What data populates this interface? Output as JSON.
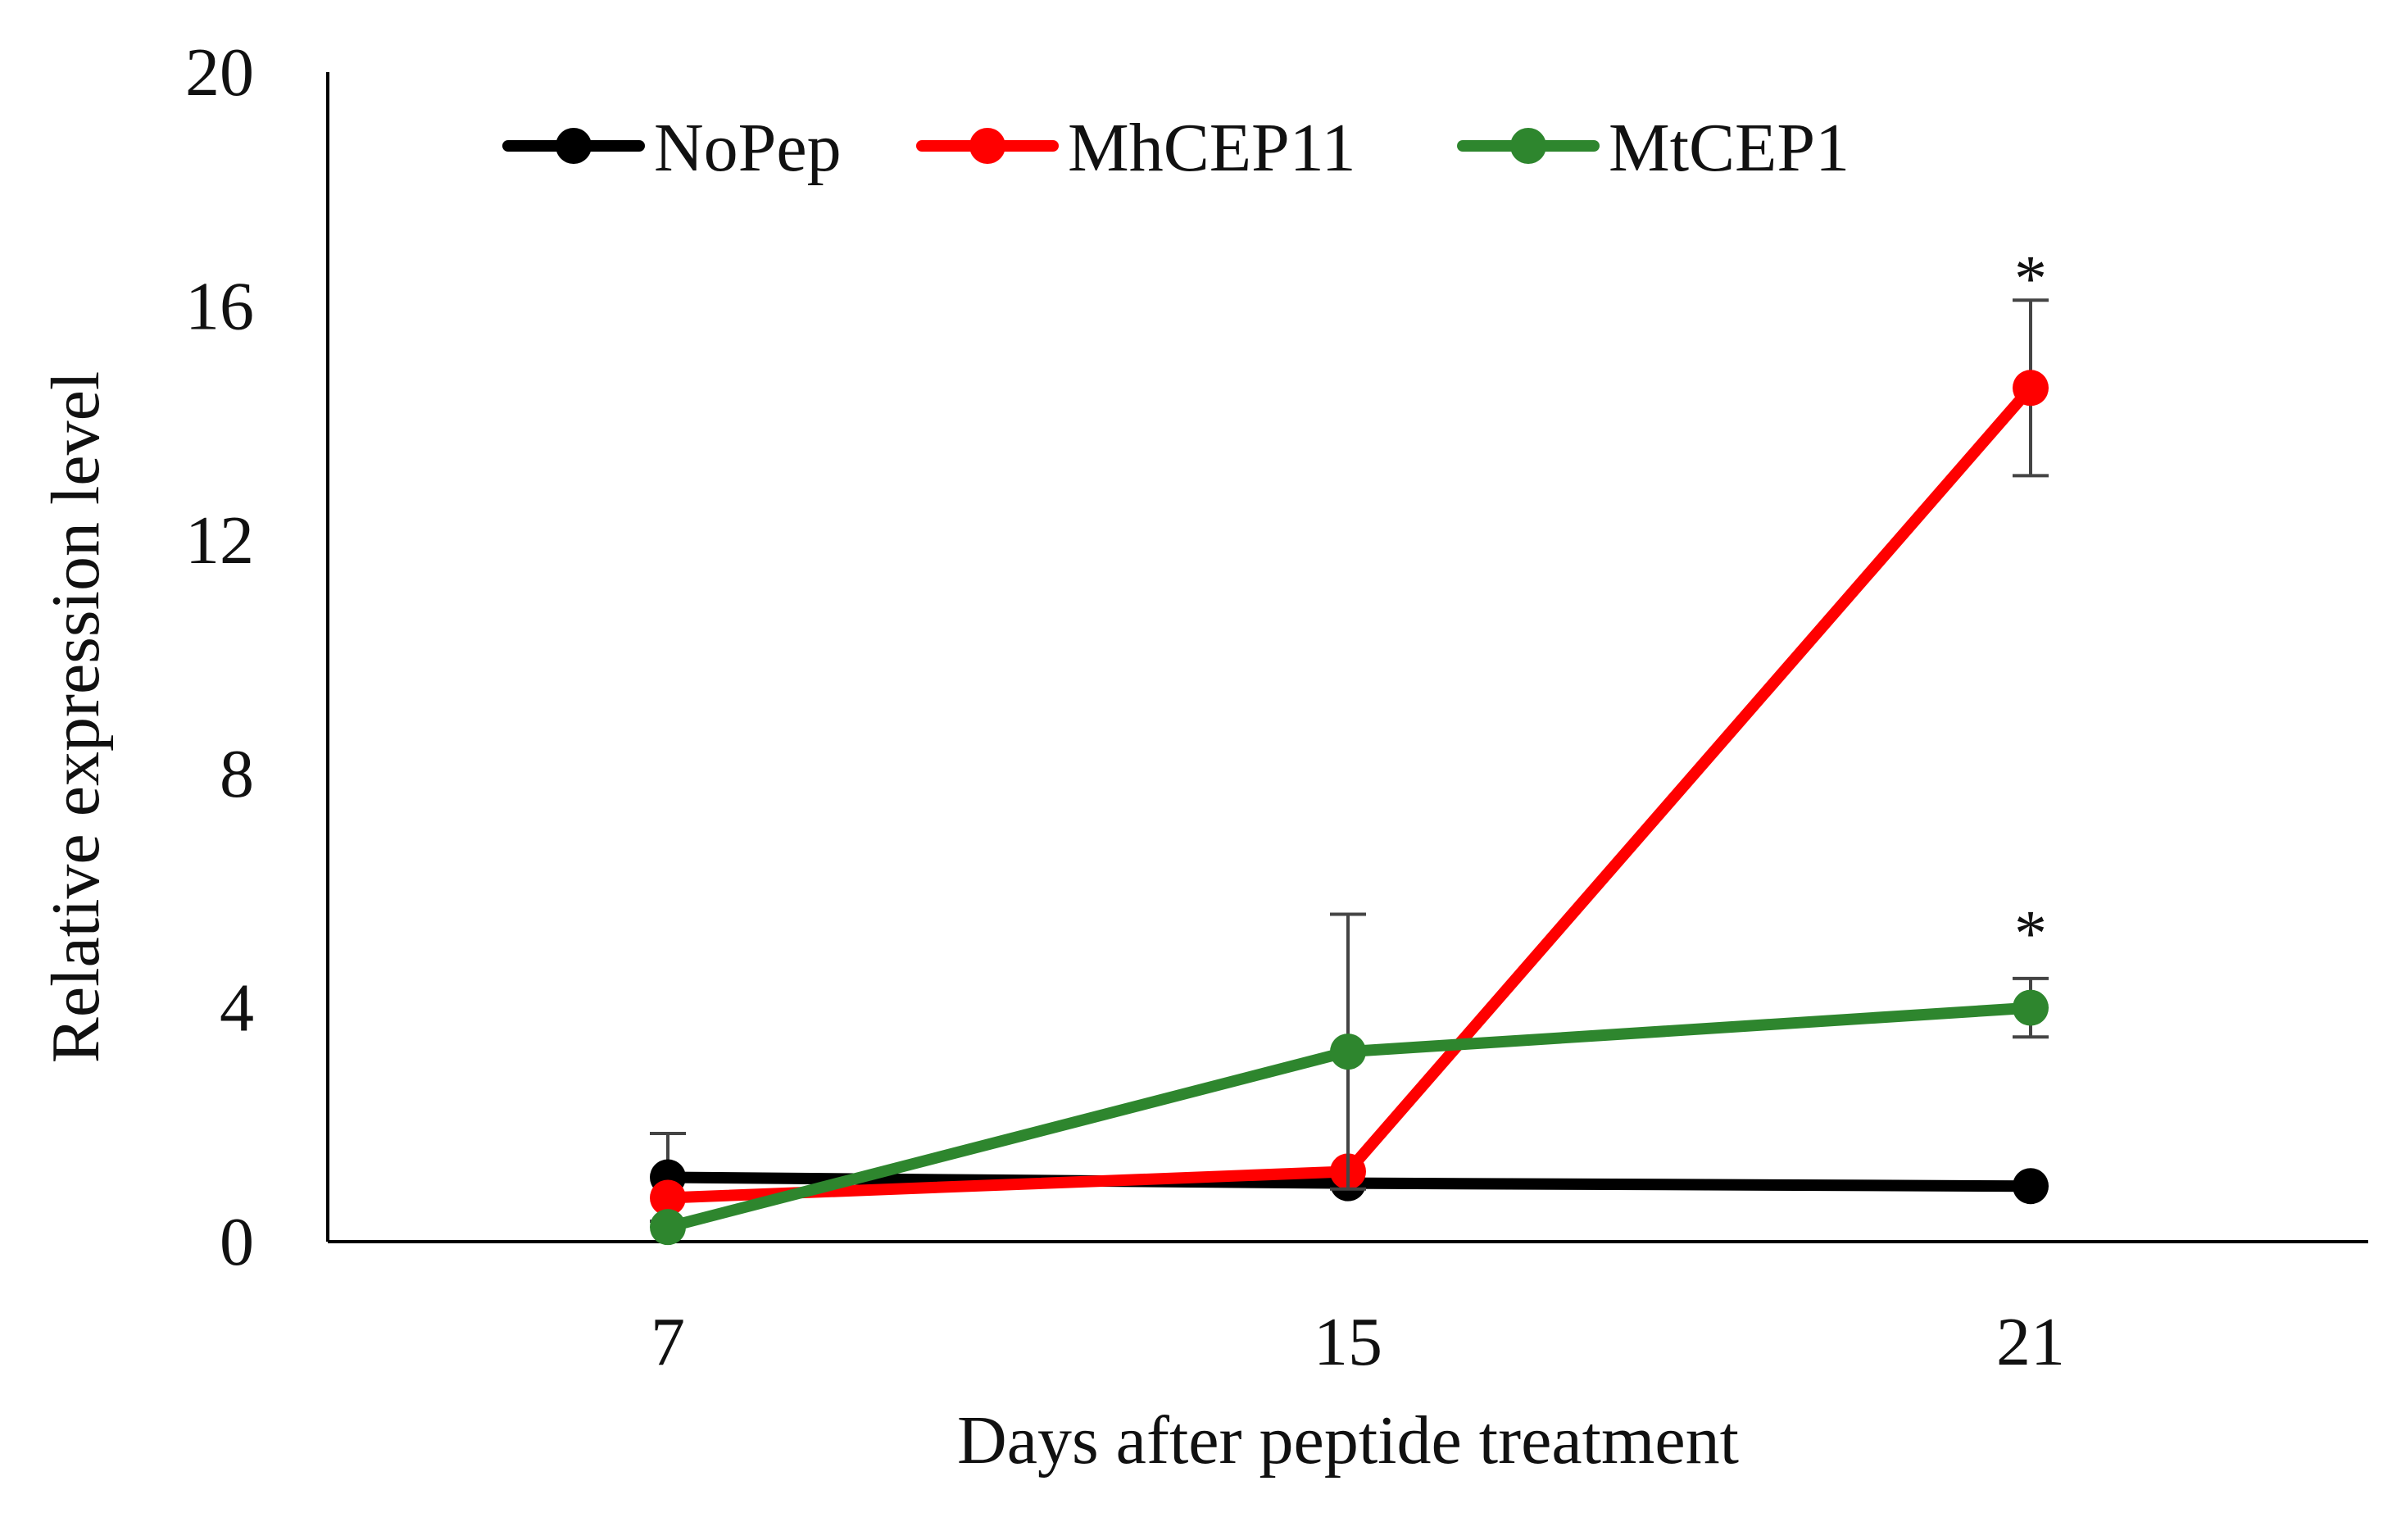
{
  "chart_data": {
    "type": "line",
    "title": "",
    "xlabel": "Days after peptide treatment",
    "ylabel": "Relative  expression level",
    "x": [
      7,
      15,
      21
    ],
    "x_tick_labels": [
      "7",
      "15",
      "21"
    ],
    "y_ticks": [
      0,
      4,
      8,
      12,
      16,
      20
    ],
    "y_tick_labels": [
      "0",
      "4",
      "8",
      "12",
      "16",
      "20"
    ],
    "ylim": [
      0,
      20
    ],
    "grid": false,
    "legend_position": "top",
    "series": [
      {
        "name": "NoPep",
        "color": "#000000",
        "values": [
          1.1,
          1.0,
          0.95
        ],
        "errors": [
          0.75,
          0.0,
          0.0
        ]
      },
      {
        "name": "MhCEP11",
        "color": "#ff0000",
        "values": [
          0.75,
          1.2,
          14.6
        ],
        "errors": [
          0.0,
          0.0,
          1.5
        ]
      },
      {
        "name": "MtCEP1",
        "color": "#2e862e",
        "values": [
          0.25,
          3.25,
          4.0
        ],
        "errors": [
          0.0,
          2.35,
          0.5
        ]
      }
    ],
    "annotations": [
      {
        "text": "*",
        "x": 21,
        "y": 16.8
      },
      {
        "text": "*",
        "x": 21,
        "y": 5.6
      }
    ]
  }
}
